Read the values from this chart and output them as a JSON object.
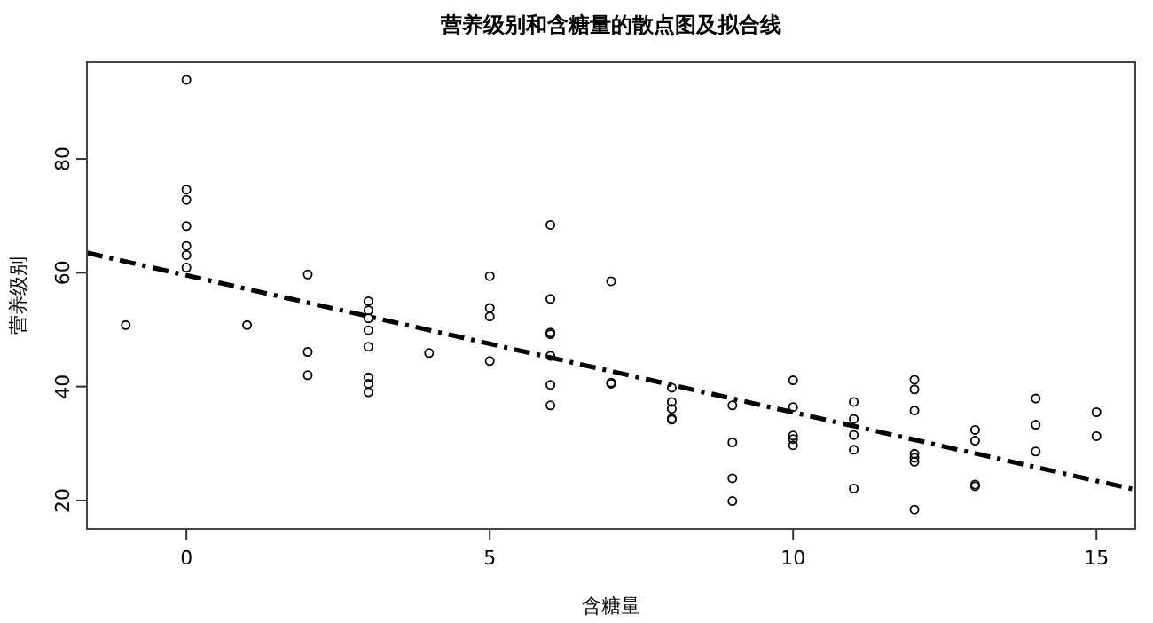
{
  "chart_data": {
    "type": "scatter",
    "title": "营养级别和含糖量的散点图及拟合线",
    "xlabel": "含糖量",
    "ylabel": "营养级别",
    "xlim": [
      -1.64,
      15.64
    ],
    "ylim": [
      15,
      97
    ],
    "xticks": [
      0,
      5,
      10,
      15
    ],
    "yticks": [
      20,
      40,
      60,
      80
    ],
    "series": [
      {
        "marker": "circle",
        "color": "#000000",
        "x": [
          -1,
          0,
          0,
          0,
          0,
          0,
          0,
          0,
          1,
          2,
          2,
          2,
          3,
          3,
          3,
          3,
          3,
          3,
          3,
          3,
          4,
          5,
          5,
          5,
          5,
          6,
          6,
          6,
          6,
          6,
          6,
          6,
          7,
          7,
          7,
          8,
          8,
          8,
          8,
          8,
          9,
          9,
          9,
          9,
          10,
          10,
          10,
          10,
          10,
          11,
          11,
          11,
          11,
          11,
          12,
          12,
          12,
          12,
          12,
          12,
          12,
          13,
          13,
          13,
          13,
          14,
          14,
          14,
          15,
          15
        ],
        "values": [
          50.8,
          93.9,
          74.6,
          72.8,
          68.2,
          64.7,
          63.1,
          60.9,
          50.8,
          59.7,
          46.1,
          42.0,
          55.0,
          53.4,
          52.0,
          49.9,
          47.0,
          41.6,
          40.5,
          39.0,
          45.9,
          59.4,
          53.8,
          52.3,
          44.5,
          68.4,
          55.4,
          49.5,
          49.2,
          45.4,
          40.3,
          36.7,
          58.5,
          40.7,
          40.5,
          39.8,
          37.3,
          36.1,
          34.4,
          34.2,
          36.7,
          30.2,
          23.9,
          19.9,
          41.1,
          36.4,
          31.4,
          30.8,
          29.7,
          37.3,
          34.3,
          31.5,
          28.9,
          22.1,
          41.2,
          39.5,
          35.8,
          28.2,
          27.5,
          26.8,
          18.4,
          32.4,
          30.5,
          22.8,
          22.5,
          37.9,
          33.3,
          28.6,
          35.5,
          31.3
        ]
      },
      {
        "type": "line",
        "line_style": "dashed",
        "color": "#000000",
        "x": [
          -1.64,
          15.64
        ],
        "values": [
          63.5,
          21.9
        ]
      }
    ]
  }
}
